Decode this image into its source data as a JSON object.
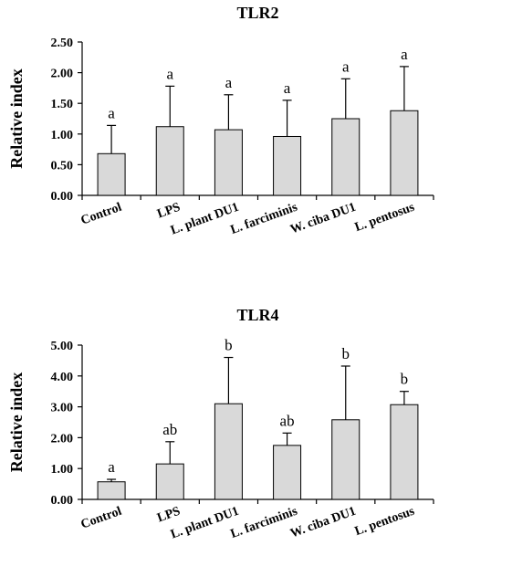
{
  "chart_data": [
    {
      "type": "bar",
      "title": "TLR2",
      "ylabel": "Relative index",
      "xlabel": "",
      "ylim": [
        0,
        2.5
      ],
      "yticks": [
        "0.00",
        "0.50",
        "1.00",
        "1.50",
        "2.00",
        "2.50"
      ],
      "categories": [
        "Control",
        "LPS",
        "L. plant DU1",
        "L. farciminis",
        "W. ciba DU1",
        "L. pentosus"
      ],
      "values": [
        0.68,
        1.12,
        1.07,
        0.96,
        1.25,
        1.38
      ],
      "errors": [
        0.46,
        0.66,
        0.57,
        0.59,
        0.65,
        0.72
      ],
      "annotations": [
        "a",
        "a",
        "a",
        "a",
        "a",
        "a"
      ],
      "bar_color": "#d9d9d9"
    },
    {
      "type": "bar",
      "title": "TLR4",
      "ylabel": "Relative index",
      "xlabel": "",
      "ylim": [
        0,
        5
      ],
      "yticks": [
        "0.00",
        "1.00",
        "2.00",
        "3.00",
        "4.00",
        "5.00"
      ],
      "categories": [
        "Control",
        "LPS",
        "L. plant DU1",
        "L. farciminis",
        "W. ciba DU1",
        "L. pentosus"
      ],
      "values": [
        0.57,
        1.15,
        3.1,
        1.75,
        2.58,
        3.07
      ],
      "errors": [
        0.08,
        0.72,
        1.5,
        0.4,
        1.74,
        0.43
      ],
      "annotations": [
        "a",
        "ab",
        "b",
        "ab",
        "b",
        "b"
      ],
      "bar_color": "#d9d9d9"
    }
  ]
}
